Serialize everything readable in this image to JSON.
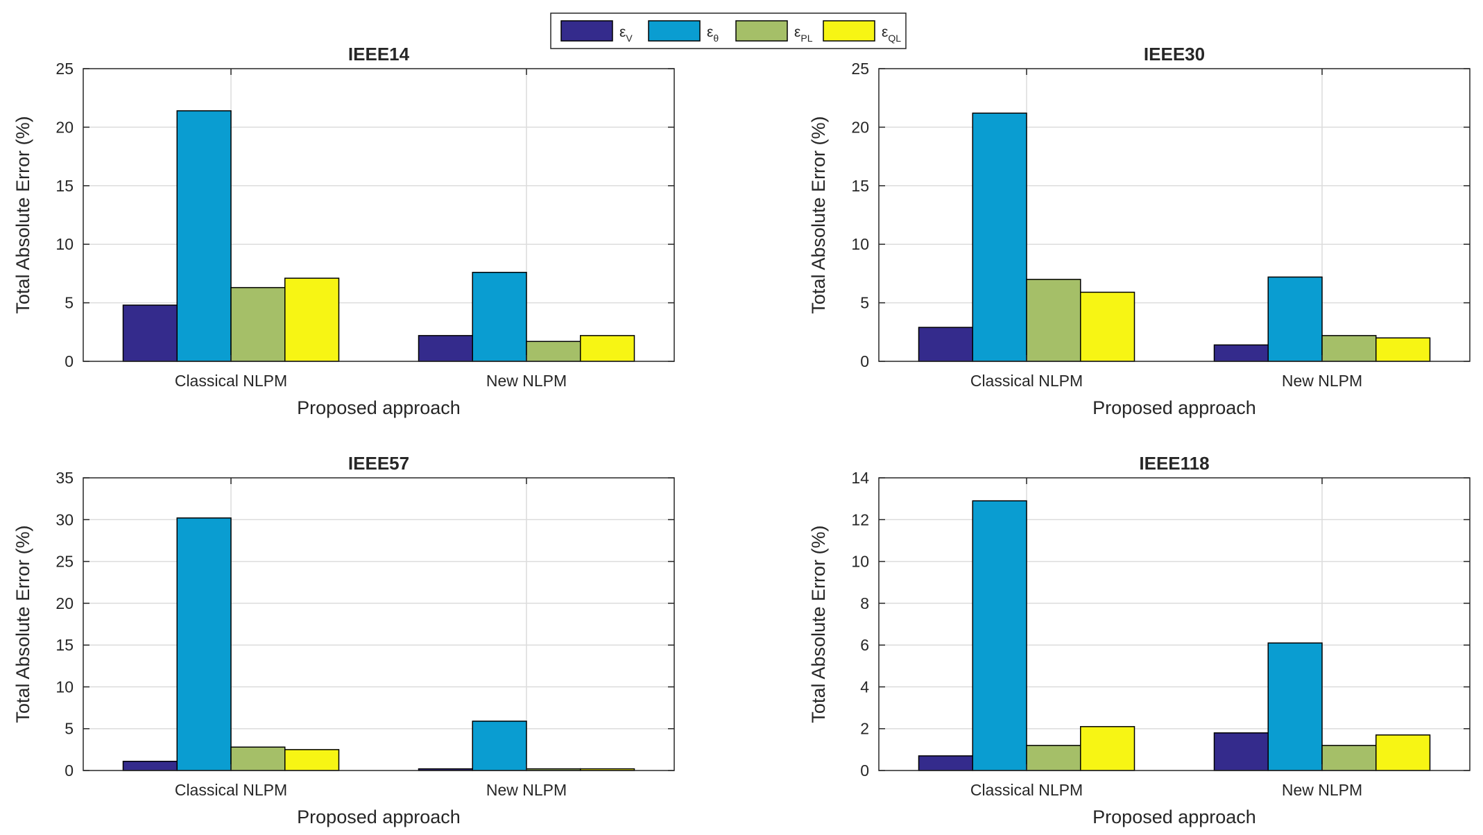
{
  "legend": {
    "location": "top-center",
    "entries": [
      {
        "symbol": "ε",
        "sub": "V",
        "series_ref": 0
      },
      {
        "symbol": "ε",
        "sub": "θ",
        "series_ref": 1
      },
      {
        "symbol": "ε",
        "sub": "PL",
        "series_ref": 2
      },
      {
        "symbol": "ε",
        "sub": "QL",
        "series_ref": 3
      }
    ]
  },
  "colors": {
    "series": [
      "#342b8c",
      "#0a9dd1",
      "#a5bf68",
      "#f7f514"
    ],
    "grid": "#dcdcdc",
    "axis": "#262626"
  },
  "chart_data": [
    {
      "type": "bar",
      "title": "IEEE14",
      "xlabel": "Proposed approach",
      "ylabel": "Total Absolute Error (%)",
      "categories": [
        "Classical NLPM",
        "New NLPM"
      ],
      "ylim": [
        0,
        25
      ],
      "yticks": [
        0,
        5,
        10,
        15,
        20,
        25
      ],
      "grid": true,
      "series": [
        {
          "name": "εV",
          "values": [
            4.8,
            2.2
          ]
        },
        {
          "name": "εθ",
          "values": [
            21.4,
            7.6
          ]
        },
        {
          "name": "εPL",
          "values": [
            6.3,
            1.7
          ]
        },
        {
          "name": "εQL",
          "values": [
            7.1,
            2.2
          ]
        }
      ]
    },
    {
      "type": "bar",
      "title": "IEEE30",
      "xlabel": "Proposed approach",
      "ylabel": "Total Absolute Error (%)",
      "categories": [
        "Classical NLPM",
        "New NLPM"
      ],
      "ylim": [
        0,
        25
      ],
      "yticks": [
        0,
        5,
        10,
        15,
        20,
        25
      ],
      "grid": true,
      "series": [
        {
          "name": "εV",
          "values": [
            2.9,
            1.4
          ]
        },
        {
          "name": "εθ",
          "values": [
            21.2,
            7.2
          ]
        },
        {
          "name": "εPL",
          "values": [
            7.0,
            2.2
          ]
        },
        {
          "name": "εQL",
          "values": [
            5.9,
            2.0
          ]
        }
      ]
    },
    {
      "type": "bar",
      "title": "IEEE57",
      "xlabel": "Proposed approach",
      "ylabel": "Total Absolute Error (%)",
      "categories": [
        "Classical NLPM",
        "New NLPM"
      ],
      "ylim": [
        0,
        35
      ],
      "yticks": [
        0,
        5,
        10,
        15,
        20,
        25,
        30,
        35
      ],
      "grid": true,
      "series": [
        {
          "name": "εV",
          "values": [
            1.1,
            0.2
          ]
        },
        {
          "name": "εθ",
          "values": [
            30.2,
            5.9
          ]
        },
        {
          "name": "εPL",
          "values": [
            2.8,
            0.2
          ]
        },
        {
          "name": "εQL",
          "values": [
            2.5,
            0.2
          ]
        }
      ]
    },
    {
      "type": "bar",
      "title": "IEEE118",
      "xlabel": "Proposed approach",
      "ylabel": "Total Absolute Error (%)",
      "categories": [
        "Classical NLPM",
        "New NLPM"
      ],
      "ylim": [
        0,
        14
      ],
      "yticks": [
        0,
        2,
        4,
        6,
        8,
        10,
        12,
        14
      ],
      "grid": true,
      "series": [
        {
          "name": "εV",
          "values": [
            0.7,
            1.8
          ]
        },
        {
          "name": "εθ",
          "values": [
            12.9,
            6.1
          ]
        },
        {
          "name": "εPL",
          "values": [
            1.2,
            1.2
          ]
        },
        {
          "name": "εQL",
          "values": [
            2.1,
            1.7
          ]
        }
      ]
    }
  ]
}
